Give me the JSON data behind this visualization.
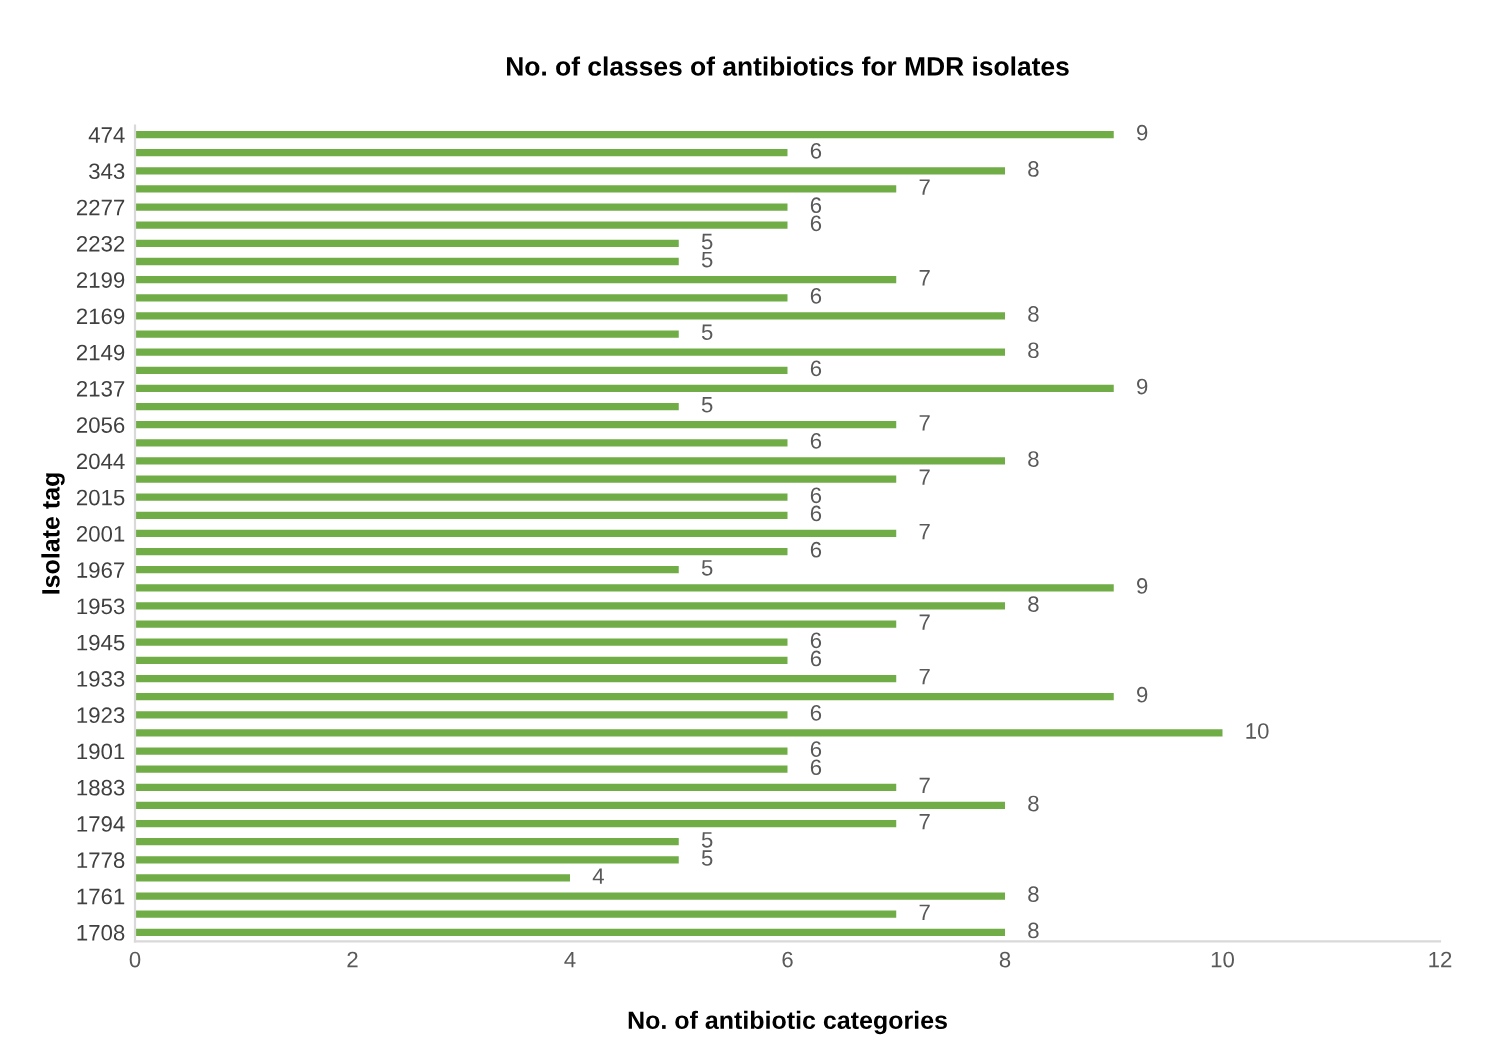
{
  "chart_data": {
    "type": "bar",
    "orientation": "horizontal",
    "title": "No. of classes of antibiotics for MDR isolates",
    "xlabel": "No. of antibiotic categories",
    "ylabel": "Isolate tag",
    "categories": [
      "474",
      null,
      "343",
      null,
      "2277",
      null,
      "2232",
      null,
      "2199",
      null,
      "2169",
      null,
      "2149",
      null,
      "2137",
      null,
      "2056",
      null,
      "2044",
      null,
      "2015",
      null,
      "2001",
      null,
      "1967",
      null,
      "1953",
      null,
      "1945",
      null,
      "1933",
      null,
      "1923",
      null,
      "1901",
      null,
      "1883",
      null,
      "1794",
      null,
      "1778",
      null,
      "1761",
      null,
      "1708"
    ],
    "values": [
      9,
      6,
      8,
      7,
      6,
      6,
      5,
      5,
      7,
      6,
      8,
      5,
      8,
      6,
      9,
      5,
      7,
      6,
      8,
      7,
      6,
      6,
      7,
      6,
      5,
      9,
      8,
      7,
      6,
      6,
      7,
      9,
      6,
      10,
      6,
      6,
      7,
      8,
      7,
      5,
      5,
      4,
      8,
      7,
      8
    ],
    "color": "#70ad47",
    "xlim": [
      0,
      12
    ],
    "xticks": [
      0,
      2,
      4,
      6,
      8,
      10,
      12
    ],
    "data_labels": true,
    "grid": false,
    "legend": false
  }
}
